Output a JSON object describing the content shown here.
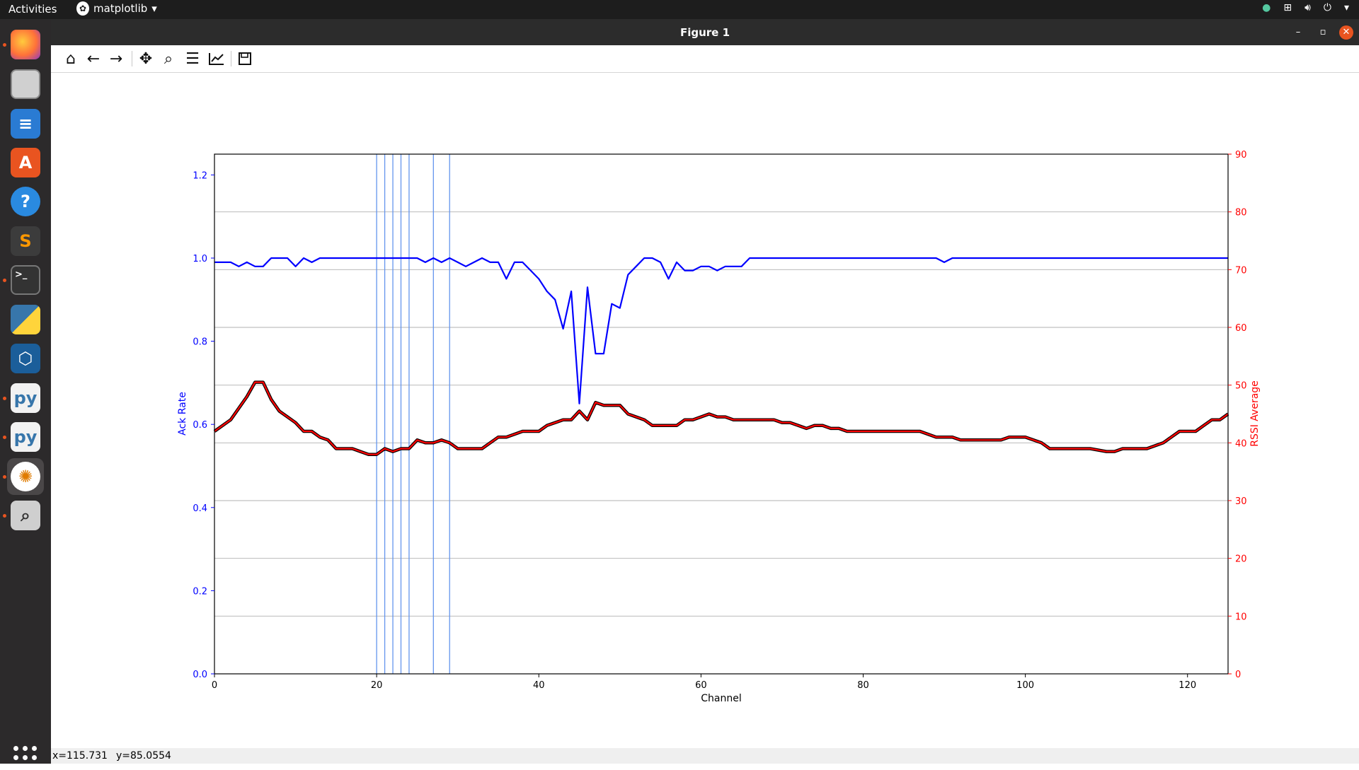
{
  "topbar": {
    "activities": "Activities",
    "app_name": "matplotlib"
  },
  "window": {
    "title": "Figure 1"
  },
  "toolbar": {
    "buttons": [
      "home-icon",
      "back-icon",
      "forward-icon",
      "pan-icon",
      "zoom-icon",
      "configure-subplots-icon",
      "edit-axis-icon",
      "save-icon"
    ]
  },
  "status": {
    "x": "x=115.731",
    "y": "y=85.0554"
  },
  "dock": {
    "items": [
      "firefox-icon",
      "files-icon",
      "writer-icon",
      "software-icon",
      "help-icon",
      "sublime-icon",
      "terminal-icon",
      "python-icon",
      "virtualbox-icon",
      "python-file-icon",
      "python-file-icon",
      "matplotlib-icon",
      "image-viewer-icon"
    ]
  },
  "chart_data": {
    "type": "line",
    "xlabel": "Channel",
    "ylabel_left": "Ack Rate",
    "ylabel_right": "RSSI Average",
    "xlim": [
      0,
      125
    ],
    "ylim_left": [
      0,
      1.25
    ],
    "ylim_right": [
      0,
      90
    ],
    "xticks": [
      0,
      20,
      40,
      60,
      80,
      100,
      120
    ],
    "yticks_left": [
      "0.0",
      "0.2",
      "0.4",
      "0.6",
      "0.8",
      "1.0",
      "1.2"
    ],
    "yticks_right": [
      "0",
      "10",
      "20",
      "30",
      "40",
      "50",
      "60",
      "70",
      "80",
      "90"
    ],
    "grid": "horizontal (right axis)",
    "colors": {
      "ack": "#0000ff",
      "rssi": "#ff0000",
      "rssi_edge": "#000000",
      "vlines": "#6495ed",
      "left_axis": "#0000ff",
      "right_axis": "#ff0000"
    },
    "vlines": [
      20,
      21,
      22,
      23,
      24,
      27,
      29
    ],
    "series": [
      {
        "axis": "left",
        "points": [
          [
            0,
            0.99
          ],
          [
            1,
            0.99
          ],
          [
            2,
            0.99
          ],
          [
            3,
            0.98
          ],
          [
            4,
            0.99
          ],
          [
            5,
            0.98
          ],
          [
            6,
            0.98
          ],
          [
            7,
            1.0
          ],
          [
            8,
            1.0
          ],
          [
            9,
            1.0
          ],
          [
            10,
            0.98
          ],
          [
            11,
            1.0
          ],
          [
            12,
            0.99
          ],
          [
            13,
            1.0
          ],
          [
            15,
            1.0
          ],
          [
            20,
            1.0
          ],
          [
            25,
            1.0
          ],
          [
            26,
            0.99
          ],
          [
            27,
            1.0
          ],
          [
            28,
            0.99
          ],
          [
            29,
            1.0
          ],
          [
            30,
            0.99
          ],
          [
            31,
            0.98
          ],
          [
            32,
            0.99
          ],
          [
            33,
            1.0
          ],
          [
            34,
            0.99
          ],
          [
            35,
            0.99
          ],
          [
            36,
            0.95
          ],
          [
            37,
            0.99
          ],
          [
            38,
            0.99
          ],
          [
            39,
            0.97
          ],
          [
            40,
            0.95
          ],
          [
            41,
            0.92
          ],
          [
            42,
            0.9
          ],
          [
            43,
            0.83
          ],
          [
            44,
            0.92
          ],
          [
            45,
            0.65
          ],
          [
            46,
            0.93
          ],
          [
            47,
            0.77
          ],
          [
            48,
            0.77
          ],
          [
            49,
            0.89
          ],
          [
            50,
            0.88
          ],
          [
            51,
            0.96
          ],
          [
            52,
            0.98
          ],
          [
            53,
            1.0
          ],
          [
            54,
            1.0
          ],
          [
            55,
            0.99
          ],
          [
            56,
            0.95
          ],
          [
            57,
            0.99
          ],
          [
            58,
            0.97
          ],
          [
            59,
            0.97
          ],
          [
            60,
            0.98
          ],
          [
            61,
            0.98
          ],
          [
            62,
            0.97
          ],
          [
            63,
            0.98
          ],
          [
            64,
            0.98
          ],
          [
            65,
            0.98
          ],
          [
            66,
            1.0
          ],
          [
            70,
            1.0
          ],
          [
            80,
            1.0
          ],
          [
            89,
            1.0
          ],
          [
            90,
            0.99
          ],
          [
            91,
            1.0
          ],
          [
            100,
            1.0
          ],
          [
            110,
            1.0
          ],
          [
            120,
            1.0
          ],
          [
            125,
            1.0
          ]
        ]
      },
      {
        "axis": "right",
        "points": [
          [
            0,
            42
          ],
          [
            1,
            43
          ],
          [
            2,
            44
          ],
          [
            3,
            46
          ],
          [
            4,
            48
          ],
          [
            5,
            50.5
          ],
          [
            6,
            50.5
          ],
          [
            7,
            47.5
          ],
          [
            8,
            45.5
          ],
          [
            9,
            44.5
          ],
          [
            10,
            43.5
          ],
          [
            11,
            42
          ],
          [
            12,
            42
          ],
          [
            13,
            41
          ],
          [
            14,
            40.5
          ],
          [
            15,
            39
          ],
          [
            16,
            39
          ],
          [
            17,
            39
          ],
          [
            18,
            38.5
          ],
          [
            19,
            38
          ],
          [
            20,
            38
          ],
          [
            21,
            39
          ],
          [
            22,
            38.5
          ],
          [
            23,
            39
          ],
          [
            24,
            39
          ],
          [
            25,
            40.5
          ],
          [
            26,
            40
          ],
          [
            27,
            40
          ],
          [
            28,
            40.5
          ],
          [
            29,
            40
          ],
          [
            30,
            39
          ],
          [
            31,
            39
          ],
          [
            32,
            39
          ],
          [
            33,
            39
          ],
          [
            34,
            40
          ],
          [
            35,
            41
          ],
          [
            36,
            41
          ],
          [
            37,
            41.5
          ],
          [
            38,
            42
          ],
          [
            39,
            42
          ],
          [
            40,
            42
          ],
          [
            41,
            43
          ],
          [
            42,
            43.5
          ],
          [
            43,
            44
          ],
          [
            44,
            44
          ],
          [
            45,
            45.5
          ],
          [
            46,
            44
          ],
          [
            47,
            47
          ],
          [
            48,
            46.5
          ],
          [
            49,
            46.5
          ],
          [
            50,
            46.5
          ],
          [
            51,
            45
          ],
          [
            52,
            44.5
          ],
          [
            53,
            44
          ],
          [
            54,
            43
          ],
          [
            55,
            43
          ],
          [
            56,
            43
          ],
          [
            57,
            43
          ],
          [
            58,
            44
          ],
          [
            59,
            44
          ],
          [
            60,
            44.5
          ],
          [
            61,
            45
          ],
          [
            62,
            44.5
          ],
          [
            63,
            44.5
          ],
          [
            64,
            44
          ],
          [
            65,
            44
          ],
          [
            66,
            44
          ],
          [
            67,
            44
          ],
          [
            68,
            44
          ],
          [
            69,
            44
          ],
          [
            70,
            43.5
          ],
          [
            71,
            43.5
          ],
          [
            72,
            43
          ],
          [
            73,
            42.5
          ],
          [
            74,
            43
          ],
          [
            75,
            43
          ],
          [
            76,
            42.5
          ],
          [
            77,
            42.5
          ],
          [
            78,
            42
          ],
          [
            80,
            42
          ],
          [
            85,
            42
          ],
          [
            87,
            42
          ],
          [
            88,
            41.5
          ],
          [
            89,
            41
          ],
          [
            90,
            41
          ],
          [
            91,
            41
          ],
          [
            92,
            40.5
          ],
          [
            93,
            40.5
          ],
          [
            95,
            40.5
          ],
          [
            97,
            40.5
          ],
          [
            98,
            41
          ],
          [
            99,
            41
          ],
          [
            100,
            41
          ],
          [
            101,
            40.5
          ],
          [
            102,
            40
          ],
          [
            103,
            39
          ],
          [
            104,
            39
          ],
          [
            105,
            39
          ],
          [
            108,
            39
          ],
          [
            110,
            38.5
          ],
          [
            111,
            38.5
          ],
          [
            112,
            39
          ],
          [
            113,
            39
          ],
          [
            114,
            39
          ],
          [
            115,
            39
          ],
          [
            116,
            39.5
          ],
          [
            117,
            40
          ],
          [
            118,
            41
          ],
          [
            119,
            42
          ],
          [
            120,
            42
          ],
          [
            121,
            42
          ],
          [
            122,
            43
          ],
          [
            123,
            44
          ],
          [
            124,
            44
          ],
          [
            125,
            45
          ]
        ]
      }
    ]
  }
}
